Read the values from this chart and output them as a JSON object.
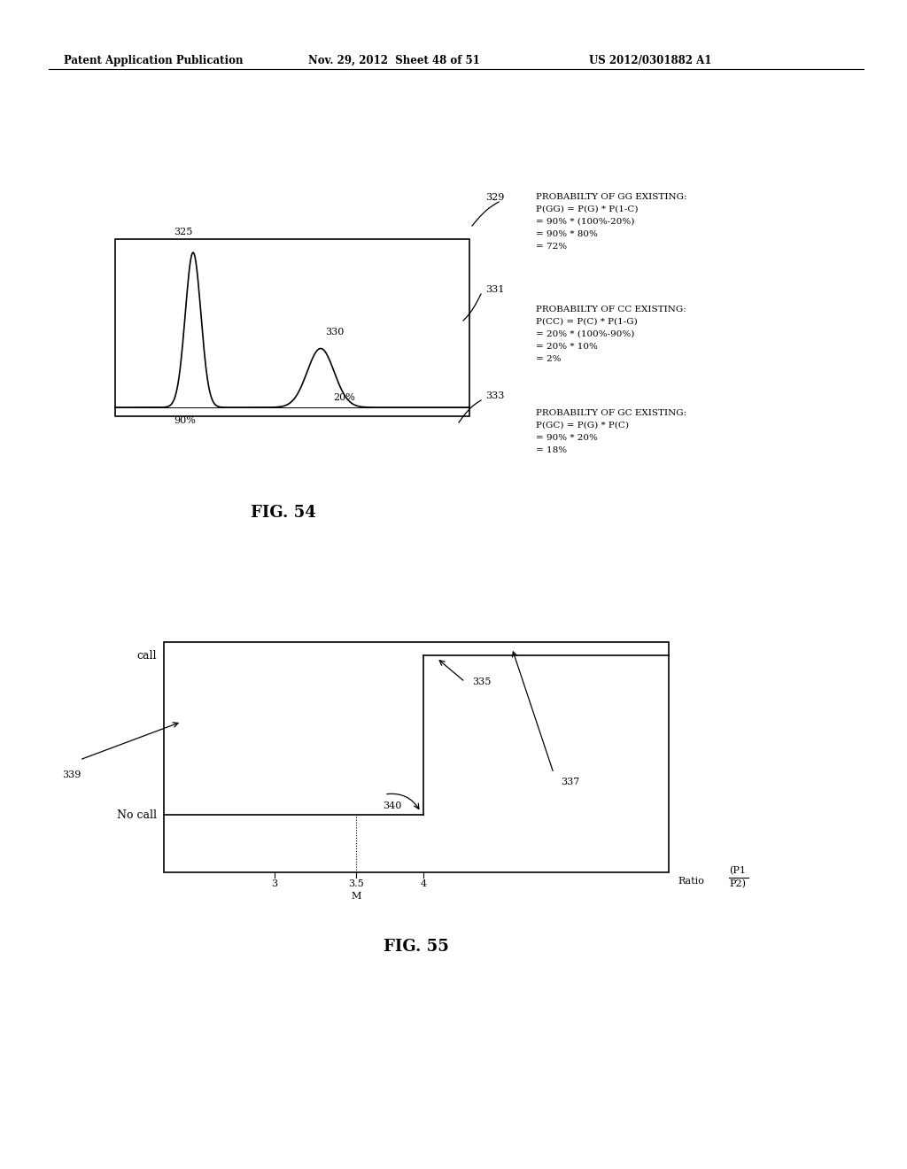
{
  "bg_color": "#ffffff",
  "header_left": "Patent Application Publication",
  "header_mid": "Nov. 29, 2012  Sheet 48 of 51",
  "header_right": "US 2012/0301882 A1",
  "fig54_title": "FIG. 54",
  "fig55_title": "FIG. 55",
  "label_329": "329",
  "label_331": "331",
  "label_333": "333",
  "label_325": "325",
  "label_330": "330",
  "text_329_line1": "PROBABILTY OF GG EXISTING:",
  "text_329_line2": "P(GG) = P(G) * P(1-C)",
  "text_329_line3": "= 90% * (100%-20%)",
  "text_329_line4": "= 90% * 80%",
  "text_329_line5": "= 72%",
  "text_331_line1": "PROBABILTY OF CC EXISTING:",
  "text_331_line2": "P(CC) = P(C) * P(1-G)",
  "text_331_line3": "= 20% * (100%-90%)",
  "text_331_line4": "= 20% * 10%",
  "text_331_line5": "= 2%",
  "text_333_line1": "PROBABILTY OF GC EXISTING:",
  "text_333_line2": "P(GC) = P(G) * P(C)",
  "text_333_line3": "= 90% * 20%",
  "text_333_line4": "= 18%",
  "peak1_label": "90%",
  "peak2_label": "20%",
  "label_335": "335",
  "label_337": "337",
  "label_339": "339",
  "label_340": "340",
  "ylabel_call": "call",
  "ylabel_nocall": "No call",
  "xlabel_ratio": "Ratio",
  "tick_3": "3",
  "tick_35": "3.5",
  "tick_4": "4",
  "tick_m": "M"
}
